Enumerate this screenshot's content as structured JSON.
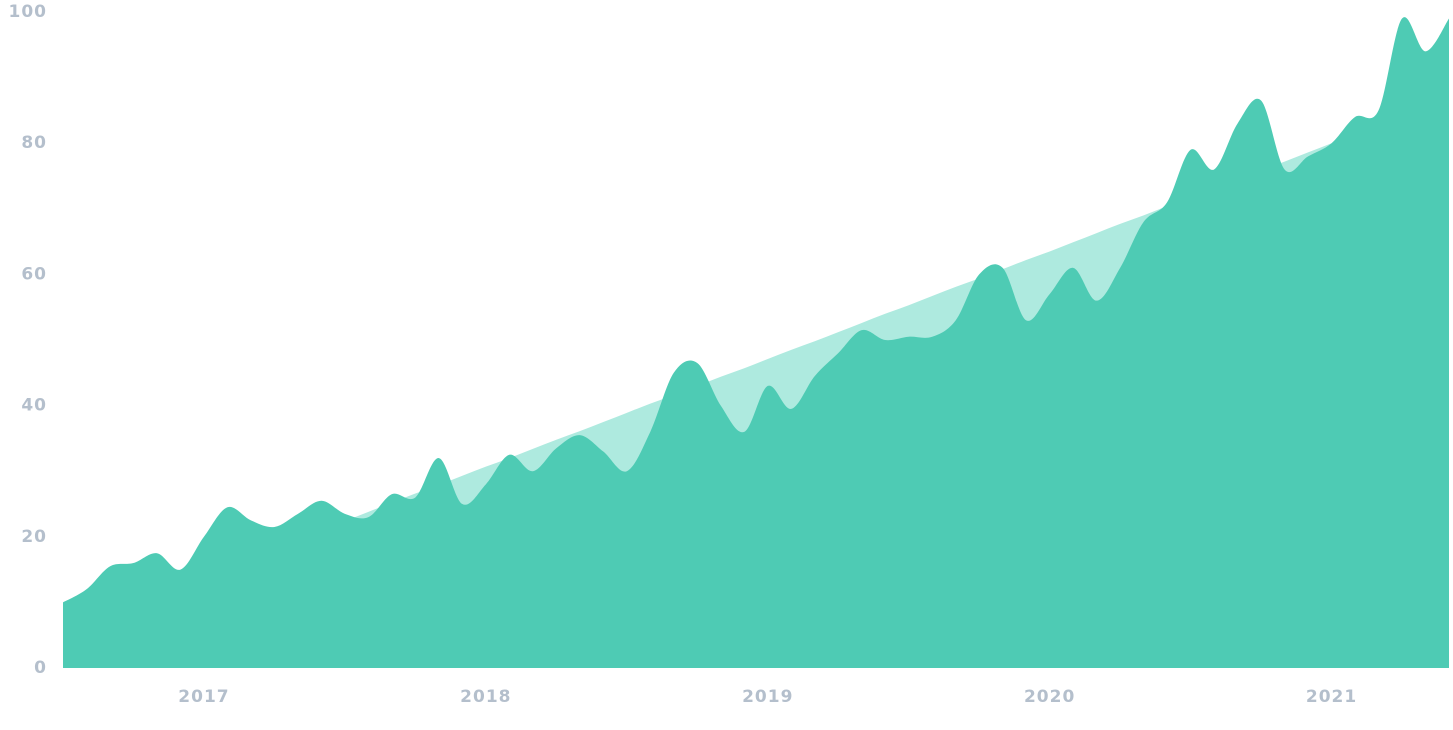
{
  "chart_data": {
    "type": "area",
    "categories": [
      null,
      null,
      null,
      null,
      null,
      null,
      "2017",
      null,
      null,
      null,
      null,
      null,
      null,
      null,
      null,
      null,
      null,
      null,
      "2018",
      null,
      null,
      null,
      null,
      null,
      null,
      null,
      null,
      null,
      null,
      null,
      "2019",
      null,
      null,
      null,
      null,
      null,
      null,
      null,
      null,
      null,
      null,
      null,
      "2020",
      null,
      null,
      null,
      null,
      null,
      null,
      null,
      null,
      null,
      null,
      null,
      "2021",
      null,
      null,
      null,
      null,
      null
    ],
    "series": [
      {
        "color": "#aeeadf",
        "values": [
          6,
          7.4,
          8.7,
          10.1,
          11.5,
          12.9,
          14.2,
          15.6,
          17,
          18.3,
          19.7,
          21.1,
          22.4,
          23.8,
          25.2,
          26.6,
          27.9,
          29.3,
          30.7,
          32,
          33.4,
          34.8,
          36.1,
          37.5,
          38.9,
          40.3,
          41.6,
          43,
          44.4,
          45.7,
          47.1,
          48.5,
          49.8,
          51.2,
          52.6,
          54,
          55.3,
          56.7,
          58.1,
          59.4,
          60.8,
          62.2,
          63.5,
          64.9,
          66.3,
          67.7,
          69,
          70.4,
          71.8,
          73.1,
          74.5,
          75.9,
          77.2,
          78.6,
          80,
          81.4,
          82.7,
          84.1,
          85.5,
          86.8
        ]
      },
      {
        "color": "#4ecbb4",
        "values": [
          10,
          12,
          15.5,
          16,
          17.5,
          15,
          20,
          24.5,
          22.5,
          21.5,
          23.5,
          25.5,
          23.5,
          23,
          26.5,
          26,
          32,
          25,
          28,
          32.5,
          30,
          33.5,
          35.5,
          33,
          30,
          36,
          45,
          46.5,
          40,
          36,
          43,
          39.5,
          44.5,
          48,
          51.5,
          50,
          50.5,
          50.5,
          53,
          60,
          61,
          53,
          57,
          61,
          56,
          61,
          68,
          71,
          79,
          76,
          83,
          86.5,
          76,
          78,
          80,
          84,
          85,
          99,
          94,
          99
        ]
      }
    ],
    "ylim": [
      0,
      100
    ],
    "yticks": [
      0,
      20,
      40,
      60,
      80,
      100
    ],
    "grid": false
  }
}
